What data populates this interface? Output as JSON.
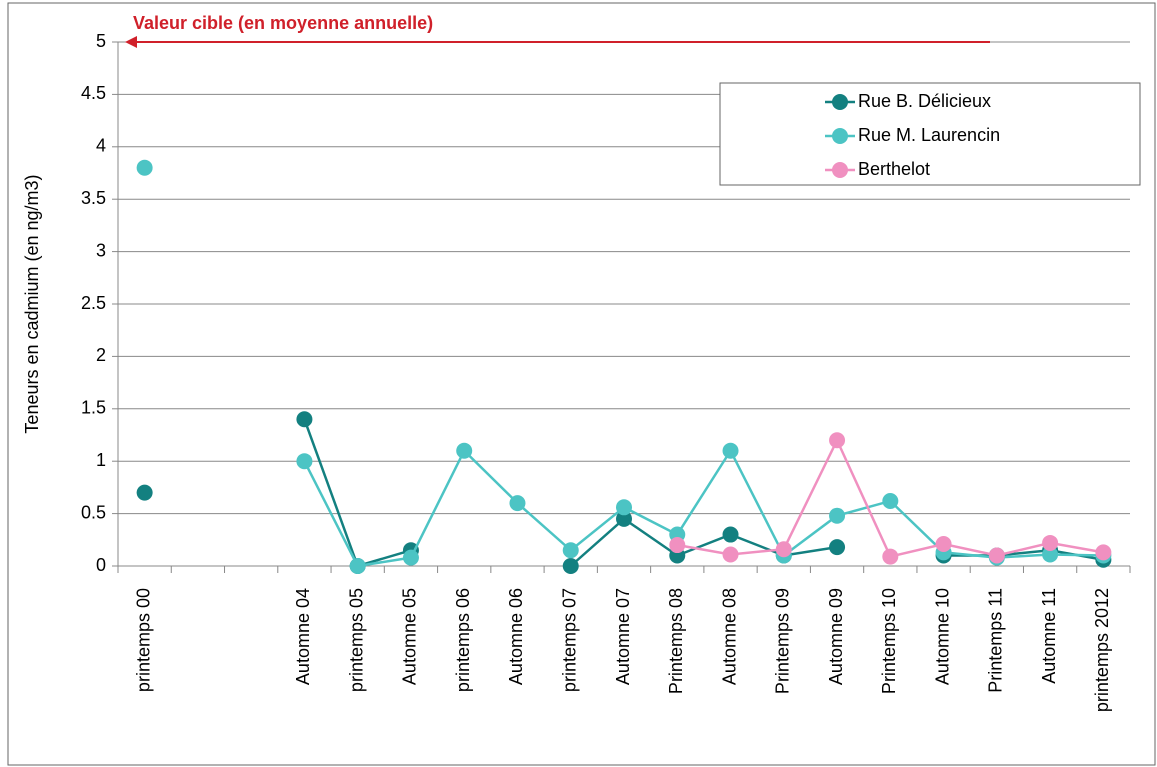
{
  "chart_data": {
    "type": "line",
    "y_label": "Teneurs en cadmium (en ng/m3)",
    "annotation": {
      "text": "Valeur cible (en moyenne annuelle)",
      "value": 5,
      "color": "#d0202a"
    },
    "categories": [
      "printemps 00",
      null,
      null,
      "Automne 04",
      "printemps 05",
      "Automne 05",
      "printemps 06",
      "Automne 06",
      "printemps 07",
      "Automne 07",
      "Printemps 08",
      "Automne 08",
      "Printemps 09",
      "Automne 09",
      "Printemps 10",
      "Automne 10",
      "Printemps 11",
      "Automne 11",
      "printemps 2012"
    ],
    "series": [
      {
        "name": "Rue B. Délicieux",
        "color": "#138080",
        "values": [
          0.7,
          null,
          null,
          1.4,
          0,
          0.15,
          null,
          null,
          0,
          0.45,
          0.1,
          0.3,
          0.1,
          0.18,
          null,
          0.1,
          0.1,
          0.15,
          0.06
        ]
      },
      {
        "name": "Rue M. Laurencin",
        "color": "#4cc4c4",
        "values": [
          3.8,
          null,
          null,
          1.0,
          0,
          0.08,
          1.1,
          0.6,
          0.15,
          0.56,
          0.3,
          1.1,
          0.1,
          0.48,
          0.62,
          0.13,
          0.08,
          0.11,
          0.1
        ]
      },
      {
        "name": "Berthelot",
        "color": "#f090c0",
        "values": [
          null,
          null,
          null,
          null,
          null,
          null,
          null,
          null,
          null,
          null,
          0.2,
          0.11,
          0.16,
          1.2,
          0.09,
          0.21,
          0.1,
          0.22,
          0.13
        ]
      }
    ],
    "ylim": [
      0,
      5
    ],
    "yticks": [
      0,
      0.5,
      1,
      1.5,
      2,
      2.5,
      3,
      3.5,
      4,
      4.5,
      5
    ],
    "grid": true,
    "legend": "top-right"
  }
}
